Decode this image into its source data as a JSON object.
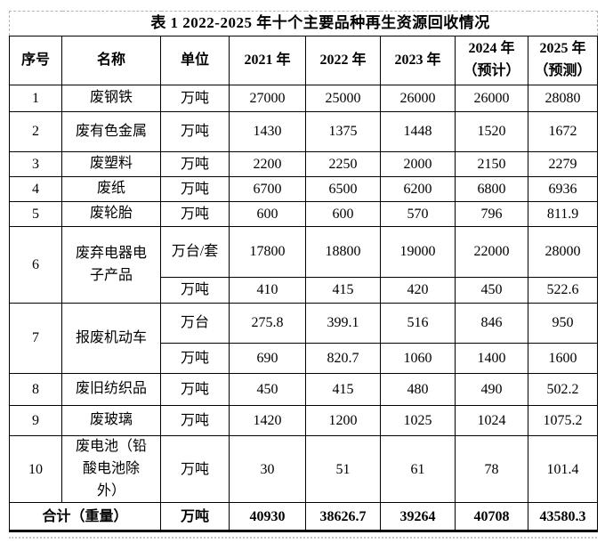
{
  "table": {
    "title": "表 1 2022-2025 年十个主要品种再生资源回收情况",
    "headers": [
      "序号",
      "名称",
      "单位",
      "2021 年",
      "2022 年",
      "2023 年",
      "2024 年\n（预计）",
      "2025 年\n（预测）"
    ],
    "rows": [
      {
        "no": "1",
        "name": "废钢铁",
        "units": [
          {
            "unit": "万吨",
            "values": [
              "27000",
              "25000",
              "26000",
              "26000",
              "28080"
            ]
          }
        ]
      },
      {
        "no": "2",
        "name": "废有色金属",
        "units": [
          {
            "unit": "万吨",
            "values": [
              "1430",
              "1375",
              "1448",
              "1520",
              "1672"
            ]
          }
        ]
      },
      {
        "no": "3",
        "name": "废塑料",
        "units": [
          {
            "unit": "万吨",
            "values": [
              "2200",
              "2250",
              "2000",
              "2150",
              "2279"
            ]
          }
        ]
      },
      {
        "no": "4",
        "name": "废纸",
        "units": [
          {
            "unit": "万吨",
            "values": [
              "6700",
              "6500",
              "6200",
              "6800",
              "6936"
            ]
          }
        ]
      },
      {
        "no": "5",
        "name": "废轮胎",
        "units": [
          {
            "unit": "万吨",
            "values": [
              "600",
              "600",
              "570",
              "796",
              "811.9"
            ]
          }
        ]
      },
      {
        "no": "6",
        "name": "废弃电器电\n子产品",
        "units": [
          {
            "unit": "万台/套",
            "values": [
              "17800",
              "18800",
              "19000",
              "22000",
              "28000"
            ]
          },
          {
            "unit": "万吨",
            "values": [
              "410",
              "415",
              "420",
              "450",
              "522.6"
            ]
          }
        ]
      },
      {
        "no": "7",
        "name": "报废机动车",
        "units": [
          {
            "unit": "万台",
            "values": [
              "275.8",
              "399.1",
              "516",
              "846",
              "950"
            ]
          },
          {
            "unit": "万吨",
            "values": [
              "690",
              "820.7",
              "1060",
              "1400",
              "1600"
            ]
          }
        ]
      },
      {
        "no": "8",
        "name": "废旧纺织品",
        "units": [
          {
            "unit": "万吨",
            "values": [
              "450",
              "415",
              "480",
              "490",
              "502.2"
            ]
          }
        ]
      },
      {
        "no": "9",
        "name": "废玻璃",
        "units": [
          {
            "unit": "万吨",
            "values": [
              "1420",
              "1200",
              "1025",
              "1024",
              "1075.2"
            ]
          }
        ]
      },
      {
        "no": "10",
        "name": "废电池（铅\n酸电池除\n外）",
        "units": [
          {
            "unit": "万吨",
            "values": [
              "30",
              "51",
              "61",
              "78",
              "101.4"
            ]
          }
        ]
      }
    ],
    "total": {
      "label": "合计（重量）",
      "unit": "万吨",
      "values": [
        "40930",
        "38626.7",
        "39264",
        "40708",
        "43580.3"
      ]
    }
  }
}
